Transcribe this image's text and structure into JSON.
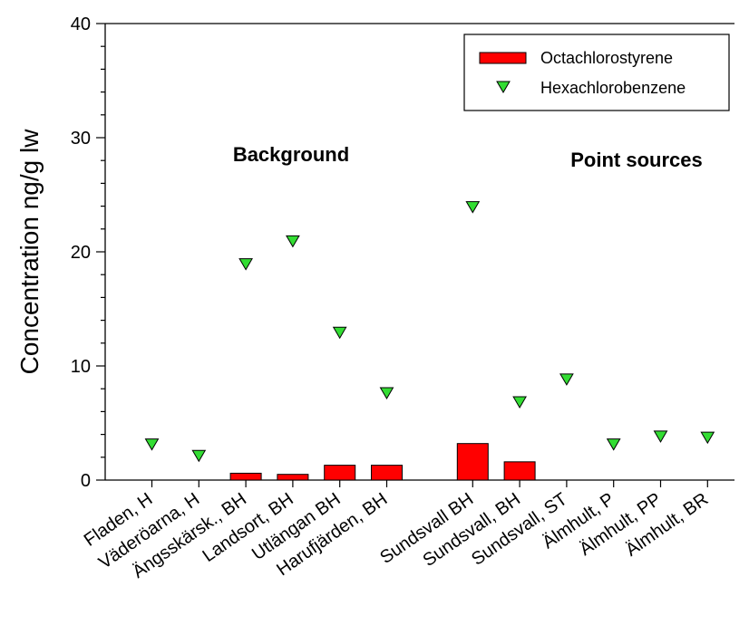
{
  "chart_data": {
    "type": "bar",
    "xlabel": "",
    "ylabel": "Concentration ng/g lw",
    "ylim": [
      0,
      40
    ],
    "yticks": [
      0,
      10,
      20,
      30,
      40
    ],
    "grid": false,
    "legend_position": "top-right",
    "categories": [
      "Fladen, H",
      "Väderöarna, H",
      "Ängsskärsk., BH",
      "Landsort, BH",
      "Utlängan BH",
      "Harufjärden, BH",
      "Sundsvall BH",
      "Sundsvall, BH",
      "Sundsvall, ST",
      "Älmhult, P",
      "Älmhult, PP",
      "Älmhult, BR"
    ],
    "series": [
      {
        "name": "Octachlorostyrene",
        "style": "bar",
        "color": "#ff0000",
        "values": [
          null,
          null,
          0.6,
          0.5,
          1.3,
          1.3,
          3.2,
          1.6,
          null,
          null,
          null,
          null
        ]
      },
      {
        "name": "Hexachlorobenzene",
        "style": "triangle-down",
        "color": "#33dd33",
        "values": [
          3.2,
          2.2,
          19,
          21,
          13,
          7.7,
          24,
          6.9,
          8.9,
          3.2,
          3.9,
          3.8
        ]
      }
    ],
    "annotations": [
      {
        "text": "Background"
      },
      {
        "text": "Point sources"
      }
    ]
  }
}
